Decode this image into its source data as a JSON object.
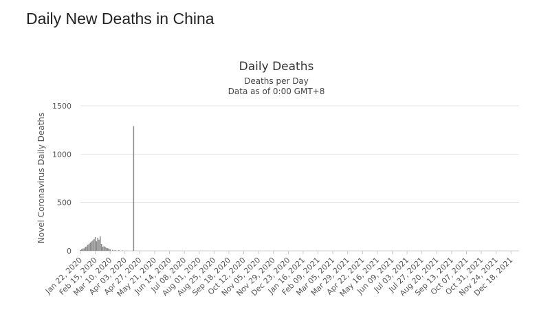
{
  "page": {
    "title": "Daily New Deaths in China"
  },
  "chart_data": {
    "type": "bar",
    "title": "Daily Deaths",
    "subtitle_lines": [
      "Deaths per Day",
      "Data as of 0:00 GMT+8"
    ],
    "ylabel": "Novel Coronavirus Daily Deaths",
    "xlabel": "",
    "ylim": [
      0,
      1500
    ],
    "yticks": [
      0,
      500,
      1000,
      1500
    ],
    "grid": true,
    "legend": "none",
    "bar_color": "#888888",
    "x_start": "Jan 22, 2020",
    "x_end": "Dec 31, 2021",
    "x_tick_labels": [
      "Jan 22, 2020",
      "Feb 15, 2020",
      "Mar 10, 2020",
      "Apr 03, 2020",
      "Apr 27, 2020",
      "May 21, 2020",
      "Jun 14, 2020",
      "Jul 08, 2020",
      "Aug 01, 2020",
      "Aug 25, 2020",
      "Sep 18, 2020",
      "Oct 12, 2020",
      "Nov 05, 2020",
      "Nov 29, 2020",
      "Dec 23, 2020",
      "Jan 16, 2021",
      "Feb 09, 2021",
      "Mar 05, 2021",
      "Mar 29, 2021",
      "Apr 22, 2021",
      "May 16, 2021",
      "Jun 09, 2021",
      "Jul 03, 2021",
      "Jul 27, 2021",
      "Aug 20, 2021",
      "Sep 13, 2021",
      "Oct 07, 2021",
      "Oct 31, 2021",
      "Nov 24, 2021",
      "Dec 18, 2021"
    ],
    "series": [
      {
        "x": [
          "Jan 22, 2020",
          "Jan 24, 2020",
          "Jan 26, 2020",
          "Jan 28, 2020",
          "Jan 30, 2020",
          "Feb 01, 2020",
          "Feb 03, 2020",
          "Feb 05, 2020",
          "Feb 07, 2020",
          "Feb 09, 2020",
          "Feb 11, 2020",
          "Feb 13, 2020",
          "Feb 15, 2020",
          "Feb 17, 2020",
          "Feb 19, 2020",
          "Feb 21, 2020",
          "Feb 23, 2020",
          "Feb 25, 2020",
          "Feb 27, 2020",
          "Feb 29, 2020",
          "Mar 02, 2020",
          "Mar 04, 2020",
          "Mar 06, 2020",
          "Mar 08, 2020",
          "Mar 10, 2020",
          "Mar 14, 2020",
          "Mar 18, 2020",
          "Mar 24, 2020",
          "Mar 30, 2020",
          "Apr 06, 2020",
          "Apr 17, 2020"
        ],
        "values": [
          8,
          16,
          24,
          26,
          43,
          45,
          64,
          73,
          86,
          97,
          108,
          121,
          142,
          98,
          136,
          115,
          150,
          71,
          44,
          47,
          42,
          31,
          28,
          22,
          17,
          10,
          8,
          6,
          3,
          2,
          1290
        ]
      }
    ]
  }
}
